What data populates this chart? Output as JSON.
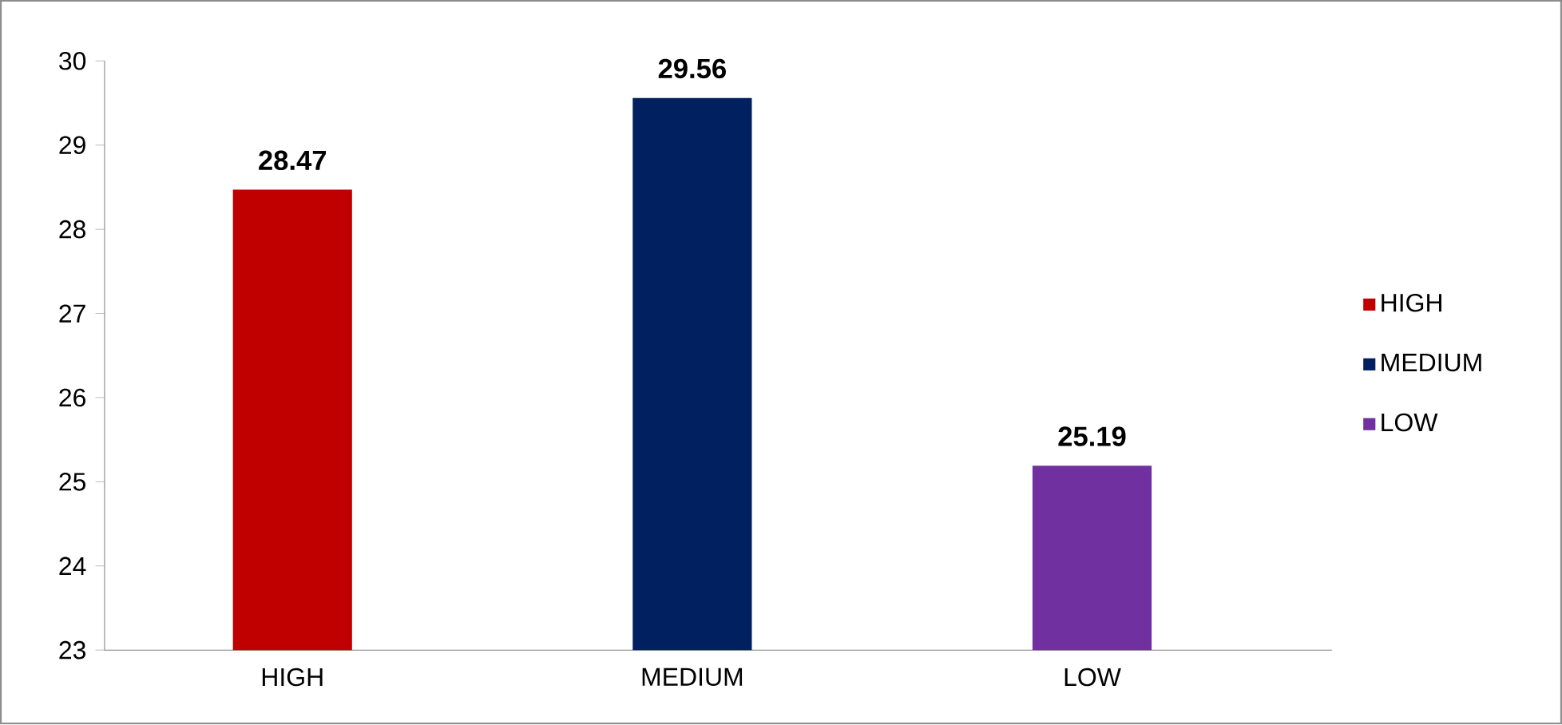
{
  "chart_data": {
    "type": "bar",
    "categories": [
      "HIGH",
      "MEDIUM",
      "LOW"
    ],
    "series": [
      {
        "name": "HIGH",
        "color": "#c00000",
        "values": [
          28.47,
          null,
          null
        ]
      },
      {
        "name": "MEDIUM",
        "color": "#002060",
        "values": [
          null,
          29.56,
          null
        ]
      },
      {
        "name": "LOW",
        "color": "#7030a0",
        "values": [
          null,
          null,
          25.19
        ]
      }
    ],
    "ylim": [
      23,
      30
    ],
    "yticks": [
      23,
      24,
      25,
      26,
      27,
      28,
      29,
      30
    ],
    "data_labels": true,
    "legend": "right",
    "grid": false
  }
}
